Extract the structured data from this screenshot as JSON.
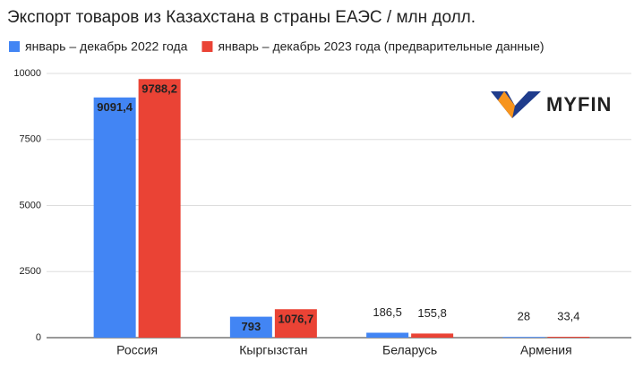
{
  "chart_data": {
    "type": "bar",
    "title": "Экспорт товаров из Казахстана в страны ЕАЭС / млн долл.",
    "categories": [
      "Россия",
      "Кыргызстан",
      "Беларусь",
      "Армения"
    ],
    "series": [
      {
        "name": "январь – декабрь 2022 года",
        "color": "#4285f4",
        "values": [
          9091.4,
          793,
          186.5,
          28
        ],
        "value_labels": [
          "9091,4",
          "793",
          "186,5",
          "28"
        ]
      },
      {
        "name": "январь – декабрь 2023 года (предварительные данные)",
        "color": "#ea4335",
        "values": [
          9788.2,
          1076.7,
          155.8,
          33.4
        ],
        "value_labels": [
          "9788,2",
          "1076,7",
          "155,8",
          "33,4"
        ]
      }
    ],
    "ylim": [
      0,
      10000
    ],
    "yticks": [
      0,
      2500,
      5000,
      7500,
      10000
    ],
    "grid": true,
    "legend": "top-left",
    "logo": "MYFIN"
  }
}
